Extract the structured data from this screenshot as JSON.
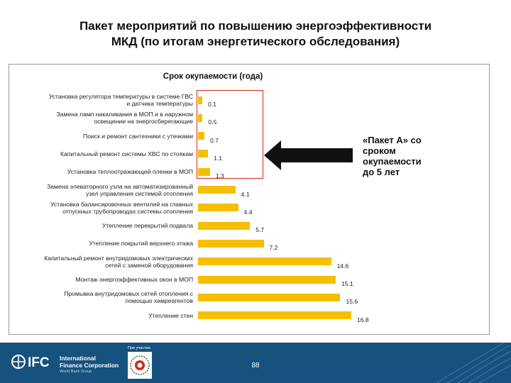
{
  "title_line1": "Пакет мероприятий по повышению энергоэффективности",
  "title_line2": "МКД (по итогам энергетического обследования)",
  "chart_data": {
    "type": "bar",
    "orientation": "horizontal",
    "title": "Срок окупаемости (года)",
    "categories": [
      [
        "Установка регулятора температуры в системе ГВС",
        "и датчика температуры"
      ],
      [
        "Замена ламп накаливания в МОП и в наружном",
        "освещении на энергосберегающие"
      ],
      [
        "Поиск и ремонт сантехники с утечками"
      ],
      [
        "Капитальный ремонт системы ХВС по стоякам"
      ],
      [
        "Установка теплоотражающей пленки в МОП"
      ],
      [
        "Замена элеваторного узла на автоматизированный",
        "узел управления системой отопления"
      ],
      [
        "Установка балансировочных вентилей на главных",
        "отпускных трубопроводах системы отопления"
      ],
      [
        "Утепление перекрытий подвала"
      ],
      [
        "Утепление покрытий верхнего этажа"
      ],
      [
        "Капитальный ремонт внутридомовых электрических",
        "сетей с заменой оборудования"
      ],
      [
        "Монтаж энергоэффективных окон в МОП"
      ],
      [
        "Промывка внутридомовых сетей отопления с",
        "помощью химреагентов"
      ],
      [
        "Утепление стен"
      ]
    ],
    "values": [
      0.1,
      0.5,
      0.7,
      1.1,
      1.3,
      4.1,
      4.4,
      5.7,
      7.2,
      14.6,
      15.1,
      15.6,
      16.8
    ],
    "value_labels": [
      "0.1",
      "0.5",
      "0.7",
      "1.1",
      "1.3",
      "4.1",
      "4.4",
      "5.7",
      "7.2",
      "14.6",
      "15.1",
      "15.6",
      "16.8"
    ],
    "xlim": [
      0,
      18
    ],
    "bar_color": "#f5bf00"
  },
  "callout": [
    "«Пакет А» со",
    "сроком",
    "окупаемости",
    "до 5 лет"
  ],
  "highlight_color": "#d9261c",
  "footer": {
    "org_name_line1": "International",
    "org_name_line2": "Finance Corporation",
    "org_sub": "World Bank Group",
    "partner_label": "При участии",
    "page_number": "88",
    "color": "#16527d"
  }
}
